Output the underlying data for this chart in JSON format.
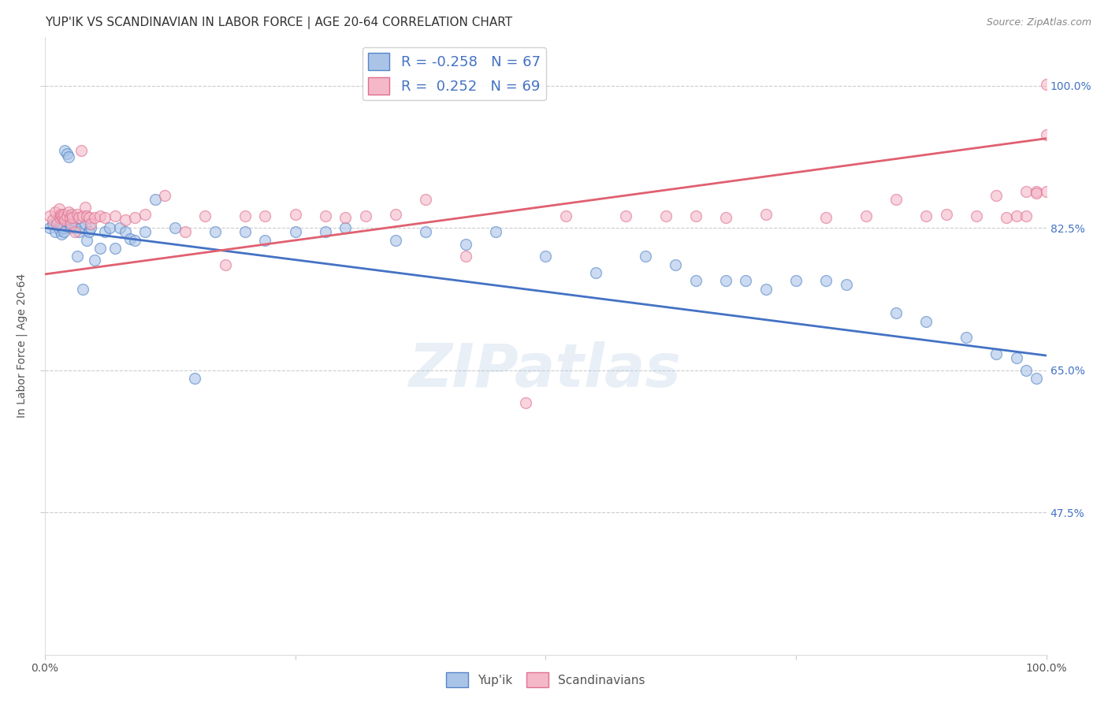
{
  "title": "YUP'IK VS SCANDINAVIAN IN LABOR FORCE | AGE 20-64 CORRELATION CHART",
  "source_text": "Source: ZipAtlas.com",
  "ylabel": "In Labor Force | Age 20-64",
  "xlim": [
    0.0,
    1.0
  ],
  "ylim": [
    0.3,
    1.06
  ],
  "yticks": [
    0.475,
    0.65,
    0.825,
    1.0
  ],
  "ytick_labels": [
    "47.5%",
    "65.0%",
    "82.5%",
    "100.0%"
  ],
  "xticks": [
    0.0,
    0.25,
    0.5,
    0.75,
    1.0
  ],
  "xtick_labels": [
    "0.0%",
    "",
    "",
    "",
    "100.0%"
  ],
  "watermark": "ZIPatlas",
  "legend_r_blue": "R = -0.258",
  "legend_n_blue": "N = 67",
  "legend_r_pink": "R =  0.252",
  "legend_n_pink": "N = 69",
  "blue_line_y_start": 0.825,
  "blue_line_y_end": 0.668,
  "pink_line_y_start": 0.768,
  "pink_line_y_end": 0.935,
  "blue_scatter_x": [
    0.005,
    0.008,
    0.01,
    0.012,
    0.014,
    0.015,
    0.016,
    0.017,
    0.018,
    0.019,
    0.02,
    0.022,
    0.024,
    0.025,
    0.026,
    0.027,
    0.028,
    0.03,
    0.032,
    0.034,
    0.036,
    0.038,
    0.04,
    0.042,
    0.044,
    0.046,
    0.05,
    0.055,
    0.06,
    0.065,
    0.07,
    0.075,
    0.08,
    0.085,
    0.09,
    0.1,
    0.11,
    0.13,
    0.15,
    0.17,
    0.2,
    0.22,
    0.25,
    0.28,
    0.3,
    0.35,
    0.38,
    0.42,
    0.45,
    0.5,
    0.55,
    0.6,
    0.63,
    0.65,
    0.68,
    0.7,
    0.72,
    0.75,
    0.78,
    0.8,
    0.85,
    0.88,
    0.92,
    0.95,
    0.97,
    0.98,
    0.99
  ],
  "blue_scatter_y": [
    0.825,
    0.83,
    0.82,
    0.835,
    0.828,
    0.822,
    0.83,
    0.817,
    0.825,
    0.82,
    0.92,
    0.916,
    0.912,
    0.83,
    0.825,
    0.84,
    0.835,
    0.825,
    0.79,
    0.82,
    0.825,
    0.75,
    0.83,
    0.81,
    0.82,
    0.825,
    0.785,
    0.8,
    0.82,
    0.825,
    0.8,
    0.825,
    0.82,
    0.812,
    0.81,
    0.82,
    0.86,
    0.825,
    0.64,
    0.82,
    0.82,
    0.81,
    0.82,
    0.82,
    0.825,
    0.81,
    0.82,
    0.805,
    0.82,
    0.79,
    0.77,
    0.79,
    0.78,
    0.76,
    0.76,
    0.76,
    0.75,
    0.76,
    0.76,
    0.755,
    0.72,
    0.71,
    0.69,
    0.67,
    0.665,
    0.65,
    0.64
  ],
  "pink_scatter_x": [
    0.005,
    0.008,
    0.01,
    0.012,
    0.014,
    0.015,
    0.016,
    0.017,
    0.018,
    0.019,
    0.02,
    0.022,
    0.024,
    0.025,
    0.026,
    0.027,
    0.028,
    0.03,
    0.032,
    0.034,
    0.036,
    0.038,
    0.04,
    0.042,
    0.044,
    0.046,
    0.05,
    0.055,
    0.06,
    0.07,
    0.08,
    0.09,
    0.1,
    0.12,
    0.14,
    0.16,
    0.18,
    0.2,
    0.22,
    0.25,
    0.28,
    0.3,
    0.32,
    0.35,
    0.38,
    0.42,
    0.48,
    0.52,
    0.58,
    0.62,
    0.65,
    0.68,
    0.72,
    0.78,
    0.82,
    0.85,
    0.88,
    0.9,
    0.93,
    0.95,
    0.96,
    0.97,
    0.98,
    0.98,
    0.99,
    0.99,
    1.0,
    1.0,
    1.0
  ],
  "pink_scatter_y": [
    0.84,
    0.835,
    0.845,
    0.83,
    0.848,
    0.838,
    0.842,
    0.84,
    0.838,
    0.842,
    0.835,
    0.84,
    0.845,
    0.838,
    0.83,
    0.842,
    0.838,
    0.82,
    0.842,
    0.838,
    0.92,
    0.84,
    0.85,
    0.84,
    0.838,
    0.83,
    0.838,
    0.84,
    0.838,
    0.84,
    0.835,
    0.838,
    0.842,
    0.865,
    0.82,
    0.84,
    0.78,
    0.84,
    0.84,
    0.842,
    0.84,
    0.838,
    0.84,
    0.842,
    0.86,
    0.79,
    0.61,
    0.84,
    0.84,
    0.84,
    0.84,
    0.838,
    0.842,
    0.838,
    0.84,
    0.86,
    0.84,
    0.842,
    0.84,
    0.865,
    0.838,
    0.84,
    0.87,
    0.84,
    0.87,
    0.868,
    0.87,
    0.94,
    1.002
  ],
  "scatter_alpha": 0.6,
  "scatter_size": 100,
  "blue_face_color": "#aac4e8",
  "blue_edge_color": "#5585c8",
  "pink_face_color": "#f4b8c8",
  "pink_edge_color": "#e07090",
  "blue_line_color": "#4472c4",
  "pink_line_color": "#e06070",
  "grid_color": "#cccccc",
  "background_color": "#ffffff",
  "title_fontsize": 11,
  "label_fontsize": 10,
  "tick_fontsize": 10,
  "source_fontsize": 9,
  "legend_fontsize": 13
}
